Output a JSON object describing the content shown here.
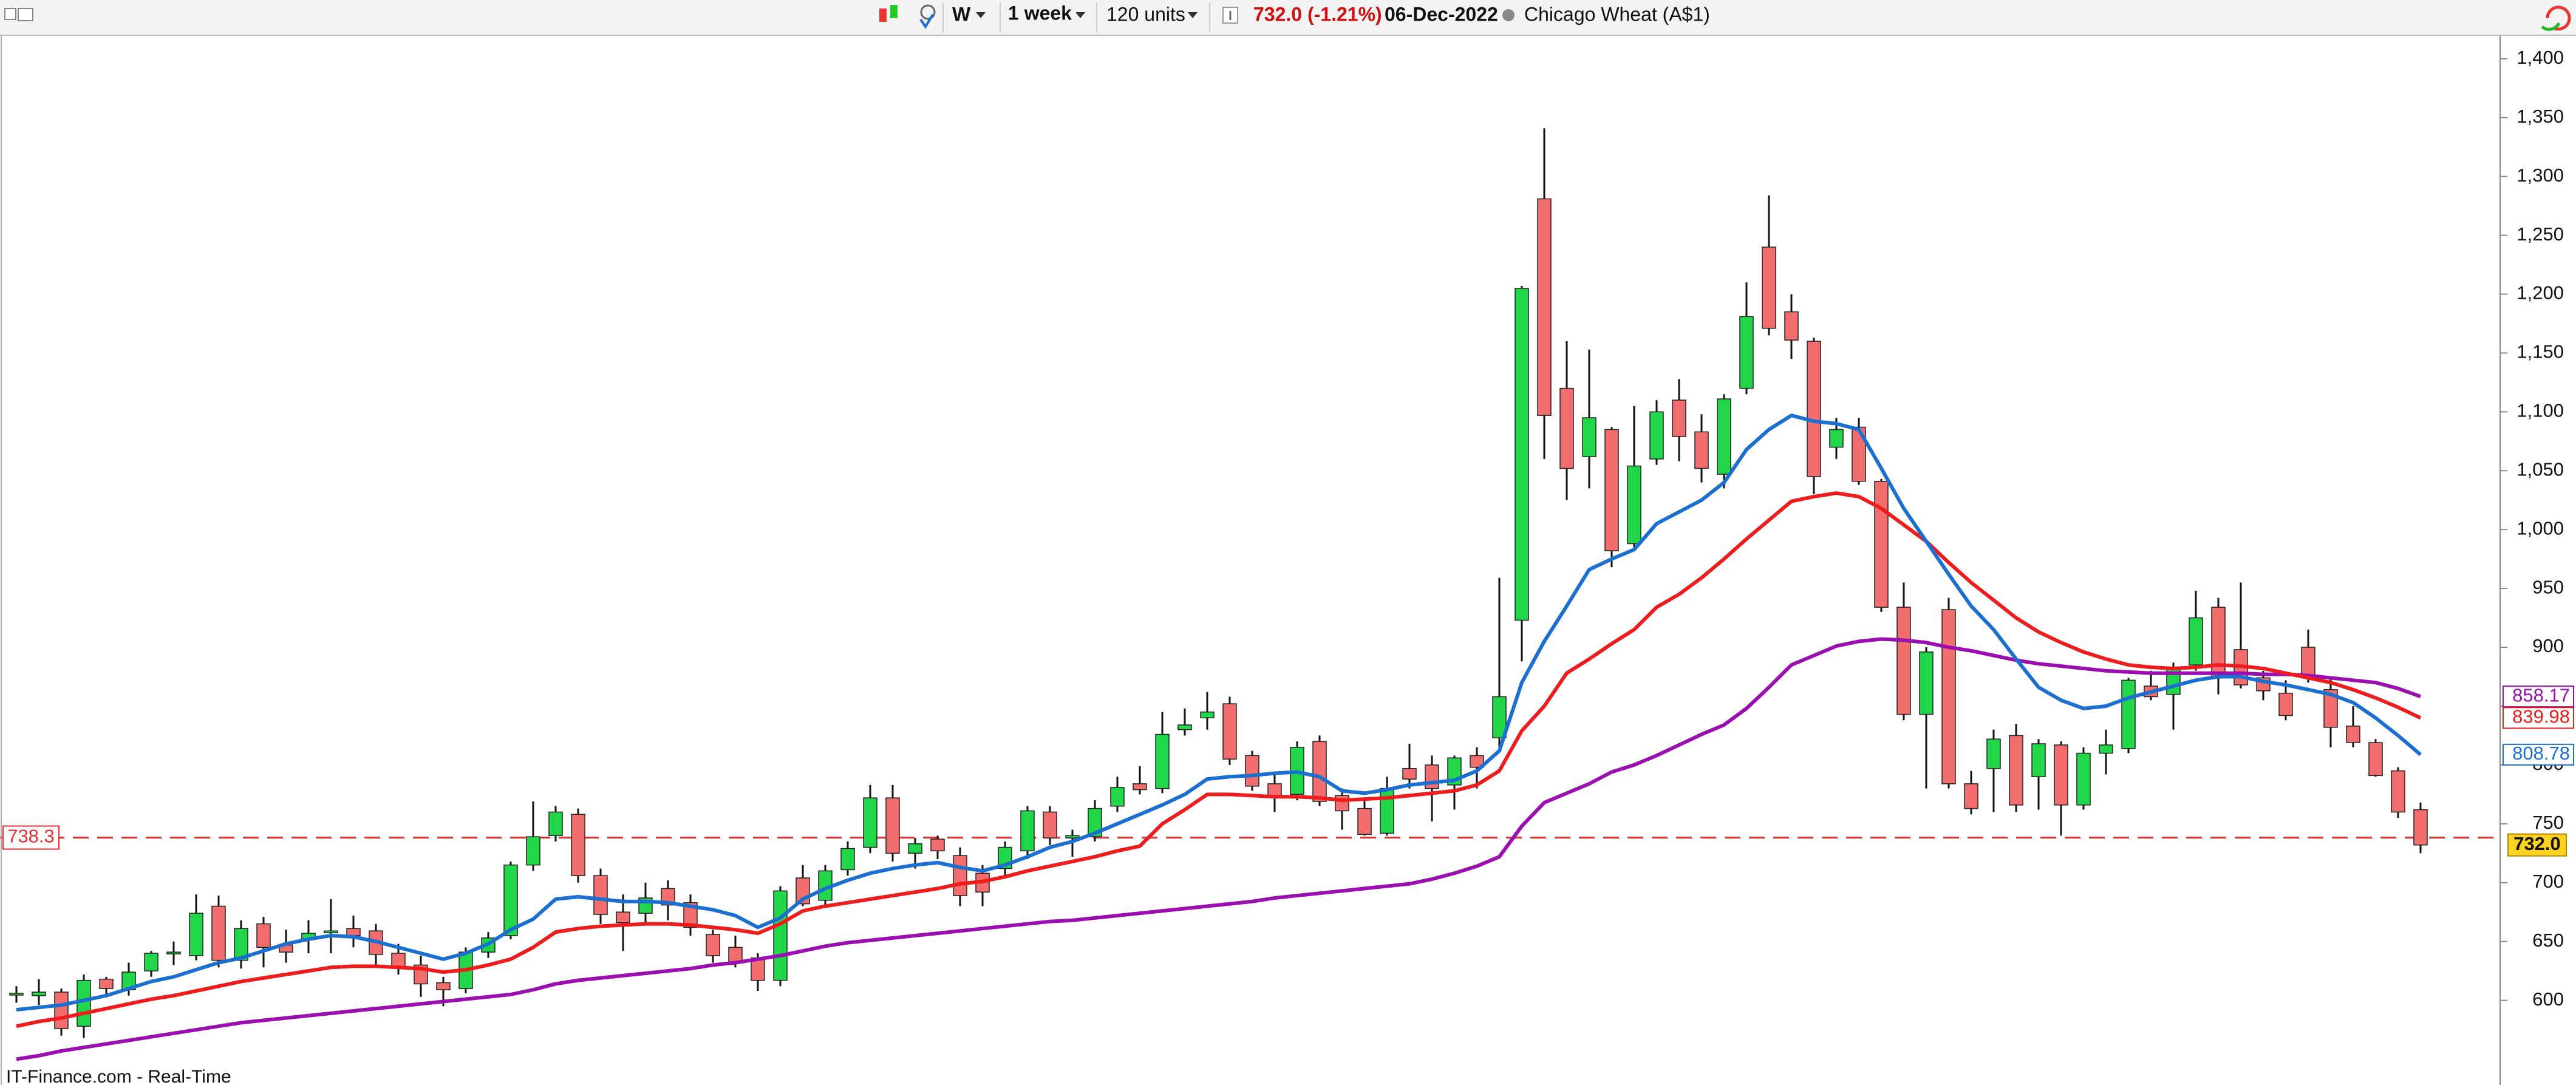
{
  "toolbar": {
    "period": "W",
    "interval": "1 week",
    "units": "120 units",
    "change": "732.0 (-1.21%)",
    "date": "06-Dec-2022",
    "instrument": "Chicago Wheat (A$1)"
  },
  "footer": {
    "source": "IT-Finance.com - Real-Time"
  },
  "chart_data": {
    "type": "candlestick",
    "up_color": "#22d64a",
    "down_color": "#f26d6d",
    "open": [
      605,
      604,
      607,
      578,
      618,
      609,
      625,
      640,
      638,
      680,
      634,
      665,
      647,
      652,
      658,
      661,
      659,
      640,
      630,
      615,
      610,
      641,
      655,
      715,
      740,
      758,
      706,
      675,
      674,
      695,
      683,
      656,
      645,
      636,
      617,
      704,
      685,
      711,
      730,
      772,
      725,
      737,
      723,
      708,
      712,
      727,
      760,
      738,
      739,
      765,
      784,
      780,
      830,
      840,
      852,
      808,
      784,
      775,
      820,
      774,
      763,
      742,
      797,
      800,
      783,
      808,
      823,
      923,
      1281,
      1120,
      1062,
      1085,
      988,
      1060,
      1110,
      1083,
      1047,
      1120,
      1240,
      1185,
      1160,
      1070,
      1087,
      1041,
      934,
      843,
      932,
      784,
      797,
      825,
      790,
      817,
      766,
      810,
      814,
      867,
      860,
      885,
      934,
      898,
      874,
      861,
      900,
      864,
      833,
      819,
      795,
      762
    ],
    "high": [
      612,
      618,
      610,
      622,
      620,
      632,
      642,
      650,
      690,
      689,
      668,
      671,
      660,
      668,
      686,
      672,
      665,
      648,
      638,
      620,
      645,
      658,
      718,
      769,
      765,
      763,
      712,
      690,
      700,
      702,
      690,
      660,
      655,
      640,
      697,
      715,
      715,
      735,
      783,
      783,
      738,
      740,
      730,
      715,
      735,
      765,
      765,
      745,
      770,
      790,
      799,
      845,
      848,
      862,
      858,
      812,
      792,
      820,
      825,
      780,
      770,
      790,
      818,
      808,
      808,
      815,
      959,
      1207,
      1341,
      1160,
      1153,
      1087,
      1105,
      1110,
      1128,
      1098,
      1115,
      1210,
      1284,
      1200,
      1163,
      1095,
      1095,
      1043,
      955,
      900,
      942,
      795,
      830,
      835,
      822,
      820,
      815,
      830,
      874,
      880,
      887,
      948,
      942,
      955,
      880,
      872,
      915,
      875,
      850,
      822,
      798,
      768
    ],
    "low": [
      598,
      596,
      570,
      568,
      605,
      604,
      620,
      630,
      634,
      628,
      627,
      628,
      632,
      640,
      640,
      645,
      630,
      622,
      603,
      595,
      606,
      636,
      652,
      710,
      735,
      700,
      665,
      642,
      665,
      668,
      655,
      632,
      628,
      608,
      612,
      680,
      680,
      706,
      725,
      718,
      712,
      720,
      680,
      680,
      705,
      720,
      732,
      722,
      735,
      760,
      775,
      776,
      825,
      830,
      800,
      778,
      760,
      770,
      765,
      745,
      740,
      740,
      780,
      752,
      762,
      780,
      815,
      888,
      1060,
      1025,
      1035,
      968,
      985,
      1055,
      1058,
      1040,
      1035,
      1115,
      1165,
      1145,
      1030,
      1060,
      1038,
      930,
      838,
      780,
      780,
      758,
      760,
      760,
      762,
      740,
      762,
      792,
      810,
      855,
      830,
      880,
      860,
      865,
      855,
      838,
      870,
      815,
      815,
      790,
      755,
      725
    ],
    "close": [
      606,
      607,
      576,
      617,
      610,
      624,
      640,
      641,
      674,
      634,
      661,
      645,
      641,
      657,
      659,
      655,
      639,
      628,
      614,
      609,
      641,
      653,
      715,
      739,
      760,
      706,
      673,
      666,
      687,
      681,
      662,
      638,
      632,
      617,
      693,
      682,
      710,
      729,
      772,
      725,
      733,
      727,
      689,
      692,
      730,
      761,
      738,
      740,
      763,
      781,
      779,
      826,
      834,
      845,
      805,
      782,
      773,
      815,
      769,
      761,
      741,
      780,
      788,
      780,
      806,
      798,
      858,
      1205,
      1097,
      1052,
      1095,
      982,
      1054,
      1100,
      1079,
      1052,
      1111,
      1181,
      1171,
      1161,
      1045,
      1085,
      1041,
      934,
      843,
      896,
      784,
      763,
      822,
      766,
      818,
      766,
      810,
      817,
      872,
      858,
      883,
      925,
      875,
      868,
      863,
      842,
      875,
      832,
      819,
      791,
      760,
      732
    ],
    "series": [
      {
        "color": "#9b0fb0",
        "values": [
          550,
          553,
          557,
          560,
          563,
          566,
          569,
          572,
          575,
          578,
          581,
          583,
          585,
          587,
          589,
          591,
          593,
          595,
          597,
          599,
          601,
          603,
          605,
          609,
          614,
          617,
          619,
          621,
          623,
          625,
          627,
          630,
          632,
          635,
          638,
          642,
          646,
          649,
          651,
          653,
          655,
          657,
          659,
          661,
          663,
          665,
          667,
          668,
          670,
          672,
          674,
          676,
          678,
          680,
          682,
          684,
          687,
          689,
          691,
          693,
          695,
          697,
          699,
          703,
          708,
          714,
          722,
          748,
          768,
          776,
          784,
          794,
          800,
          808,
          817,
          826,
          834,
          848,
          866,
          885,
          893,
          901,
          905,
          907,
          906,
          904,
          900,
          897,
          893,
          889,
          886,
          884,
          882,
          880,
          879,
          878,
          878,
          878,
          878,
          878,
          877,
          877,
          876,
          874,
          872,
          870,
          865,
          858.17
        ]
      },
      {
        "color": "#ee1c1c",
        "values": [
          578,
          582,
          585,
          589,
          593,
          597,
          601,
          604,
          608,
          612,
          616,
          619,
          622,
          625,
          628,
          629,
          629,
          628,
          627,
          624,
          626,
          630,
          635,
          645,
          658,
          661,
          663,
          664,
          665,
          665,
          664,
          662,
          660,
          657,
          665,
          676,
          680,
          683,
          686,
          689,
          692,
          695,
          699,
          701,
          705,
          710,
          714,
          718,
          722,
          727,
          731,
          750,
          762,
          775,
          775,
          774,
          773,
          773,
          772,
          770,
          771,
          772,
          774,
          776,
          778,
          783,
          795,
          829,
          850,
          878,
          890,
          903,
          915,
          934,
          945,
          959,
          975,
          992,
          1008,
          1024,
          1028,
          1031,
          1028,
          1018,
          1004,
          990,
          972,
          955,
          940,
          925,
          913,
          904,
          896,
          890,
          885,
          883,
          882,
          883,
          885,
          884,
          882,
          878,
          874,
          870,
          864,
          857,
          849,
          839.98
        ]
      },
      {
        "color": "#1a6fd1",
        "values": [
          592,
          594,
          596,
          600,
          604,
          610,
          616,
          620,
          626,
          632,
          636,
          642,
          648,
          652,
          655,
          654,
          650,
          645,
          640,
          635,
          640,
          648,
          660,
          669,
          686,
          688,
          686,
          684,
          684,
          683,
          680,
          677,
          672,
          662,
          670,
          686,
          695,
          702,
          708,
          712,
          715,
          717,
          713,
          710,
          715,
          722,
          730,
          735,
          742,
          750,
          758,
          766,
          775,
          788,
          790,
          791,
          793,
          794,
          790,
          778,
          776,
          779,
          783,
          785,
          787,
          795,
          812,
          870,
          905,
          935,
          966,
          975,
          983,
          1005,
          1015,
          1025,
          1040,
          1068,
          1085,
          1097,
          1092,
          1090,
          1085,
          1052,
          1018,
          990,
          962,
          935,
          915,
          890,
          866,
          855,
          848,
          850,
          857,
          862,
          867,
          872,
          875,
          875,
          871,
          868,
          864,
          860,
          853,
          840,
          825,
          808.78
        ]
      }
    ],
    "reference_line": 738.3,
    "last_price": {
      "value": 732,
      "label": "732.0"
    },
    "ylim": [
      542,
      1419
    ],
    "yticks": [
      600,
      650,
      700,
      750,
      800,
      850,
      900,
      950,
      {
        "value": 1000,
        "label": "1,000"
      },
      {
        "value": 1050,
        "label": "1,050"
      },
      {
        "value": 1100,
        "label": "1,100"
      },
      {
        "value": 1150,
        "label": "1,150"
      },
      {
        "value": 1200,
        "label": "1,200"
      },
      {
        "value": 1250,
        "label": "1,250"
      },
      {
        "value": 1300,
        "label": "1,300"
      },
      {
        "value": 1350,
        "label": "1,350"
      },
      {
        "value": 1400,
        "label": "1,400"
      }
    ]
  }
}
